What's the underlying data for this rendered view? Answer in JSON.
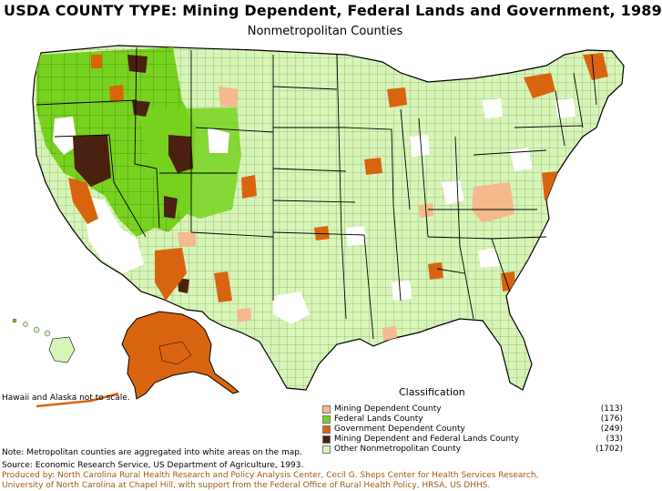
{
  "title": "USDA COUNTY TYPE: Mining Dependent, Federal Lands and Government, 1989",
  "subtitle": "Nonmetropolitan Counties",
  "note_hawaii": "Hawaii and Alaska not to scale.",
  "legend": {
    "title": "Classification",
    "items": [
      {
        "label": "Mining Dependent County",
        "count": "(113)",
        "color": "#f4b98c"
      },
      {
        "label": "Federal Lands County",
        "count": "(176)",
        "color": "#77d21f"
      },
      {
        "label": "Government Dependent County",
        "count": "(249)",
        "color": "#d9640f"
      },
      {
        "label": "Mining Dependent and Federal Lands County",
        "count": "(33)",
        "color": "#4a2010"
      },
      {
        "label": "Other Nonmetropolitan County",
        "count": "(1702)",
        "color": "#d8f5b8"
      }
    ]
  },
  "footer": {
    "note": "Note: Metropolitan counties are aggregated into white areas on the map.",
    "source": "Source: Economic Research Service, US Department of Agriculture, 1993.",
    "credit_line1": "Produced by: North Carolina Rural Health Research and Policy Analysis Center, Cecil G. Sheps Center for Health Services Research,",
    "credit_line2": "University of North Carolina at Chapel Hill, with support from the Federal Office of Rural Health Policy, HRSA, US DHHS."
  }
}
